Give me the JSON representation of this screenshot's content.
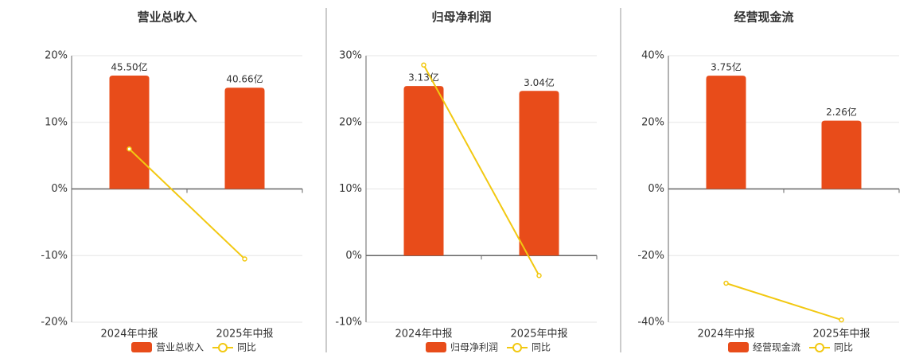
{
  "chart_data": [
    {
      "type": "combo",
      "title": "营业总收入",
      "categories": [
        "2024年中报",
        "2025年中报"
      ],
      "series": [
        {
          "name": "营业总收入",
          "color": "#e84c1a",
          "kind": "bar",
          "axis": "y2",
          "values": [
            45.5,
            40.66
          ],
          "value_labels": [
            "45.50亿",
            "40.66亿"
          ]
        },
        {
          "name": "同比",
          "color": "#f2c811",
          "kind": "line",
          "values": [
            6.0,
            -10.5
          ]
        }
      ],
      "ylim": [
        -20,
        20
      ],
      "yticks": [
        {
          "value": -20,
          "label": "-20%"
        },
        {
          "value": -10,
          "label": "-10%"
        },
        {
          "value": 0,
          "label": "0%"
        },
        {
          "value": 10,
          "label": "10%"
        },
        {
          "value": 20,
          "label": "20%"
        }
      ],
      "y2lim": [
        -53.5,
        53.5
      ],
      "grid": true
    },
    {
      "type": "combo",
      "title": "归母净利润",
      "categories": [
        "2024年中报",
        "2025年中报"
      ],
      "series": [
        {
          "name": "归母净利润",
          "color": "#e84c1a",
          "kind": "bar",
          "axis": "y2",
          "values": [
            3.13,
            3.04
          ],
          "value_labels": [
            "3.13亿",
            "3.04亿"
          ]
        },
        {
          "name": "同比",
          "color": "#f2c811",
          "kind": "line",
          "values": [
            28.6,
            -3.0
          ]
        }
      ],
      "ylim": [
        -10,
        30
      ],
      "yticks": [
        {
          "value": -10,
          "label": "-10%"
        },
        {
          "value": 0,
          "label": "0%"
        },
        {
          "value": 10,
          "label": "10%"
        },
        {
          "value": 20,
          "label": "20%"
        },
        {
          "value": 30,
          "label": "30%"
        }
      ],
      "y2lim": [
        -1.23,
        3.69
      ],
      "grid": true
    },
    {
      "type": "combo",
      "title": "经营现金流",
      "categories": [
        "2024年中报",
        "2025年中报"
      ],
      "series": [
        {
          "name": "经营现金流",
          "color": "#e84c1a",
          "kind": "bar",
          "axis": "y2",
          "values": [
            3.75,
            2.26
          ],
          "value_labels": [
            "3.75亿",
            "2.26亿"
          ]
        },
        {
          "name": "同比",
          "color": "#f2c811",
          "kind": "line",
          "values": [
            -28.3,
            -39.3
          ]
        }
      ],
      "ylim": [
        -40,
        40
      ],
      "yticks": [
        {
          "value": -40,
          "label": "-40%"
        },
        {
          "value": -20,
          "label": "-20%"
        },
        {
          "value": 0,
          "label": "0%"
        },
        {
          "value": 20,
          "label": "20%"
        },
        {
          "value": 40,
          "label": "40%"
        }
      ],
      "y2lim": [
        -4.41,
        4.41
      ],
      "grid": true
    }
  ]
}
